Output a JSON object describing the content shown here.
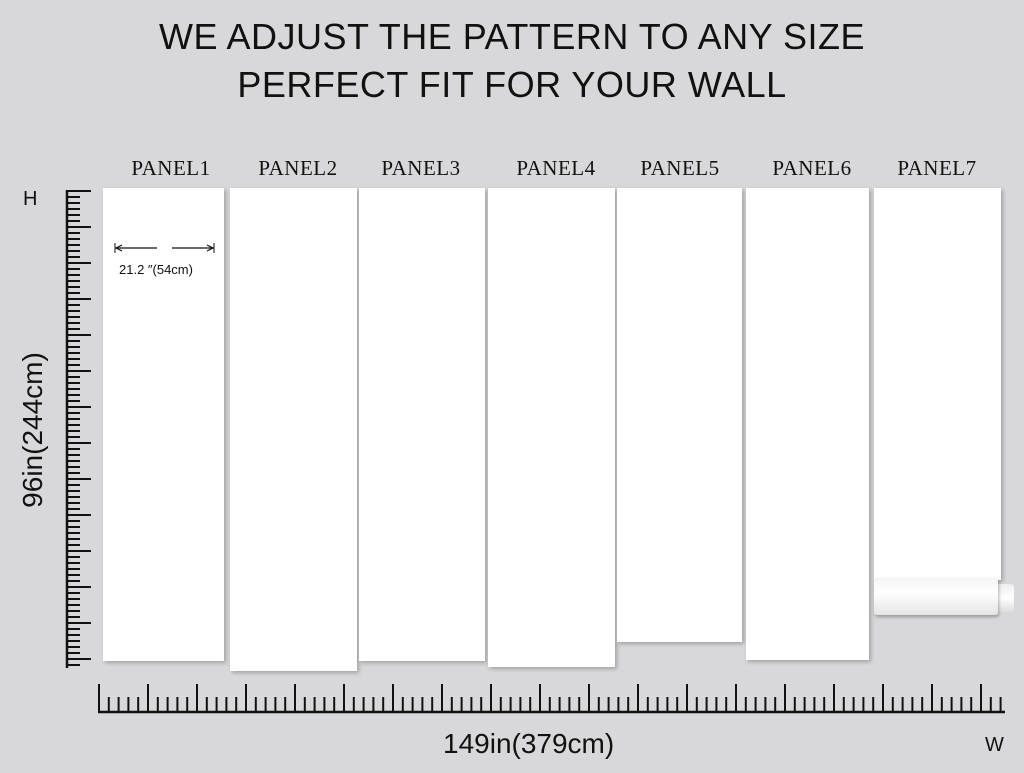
{
  "headline": [
    "WE ADJUST THE PATTERN TO ANY SIZE",
    "PERFECT FIT FOR YOUR WALL"
  ],
  "panels": [
    "PANEL1",
    "PANEL2",
    "PANEL3",
    "PANEL4",
    "PANEL5",
    "PANEL6",
    "PANEL7"
  ],
  "panel_width_label": "21.2  ″(54cm)",
  "height_label": "96in(244cm)",
  "width_label": "149in(379cm)",
  "height_axis_letter": "H",
  "width_axis_letter": "W",
  "colors": {
    "background": "#d8d8da",
    "panel": "#ffffff",
    "ruler": "#111111"
  }
}
